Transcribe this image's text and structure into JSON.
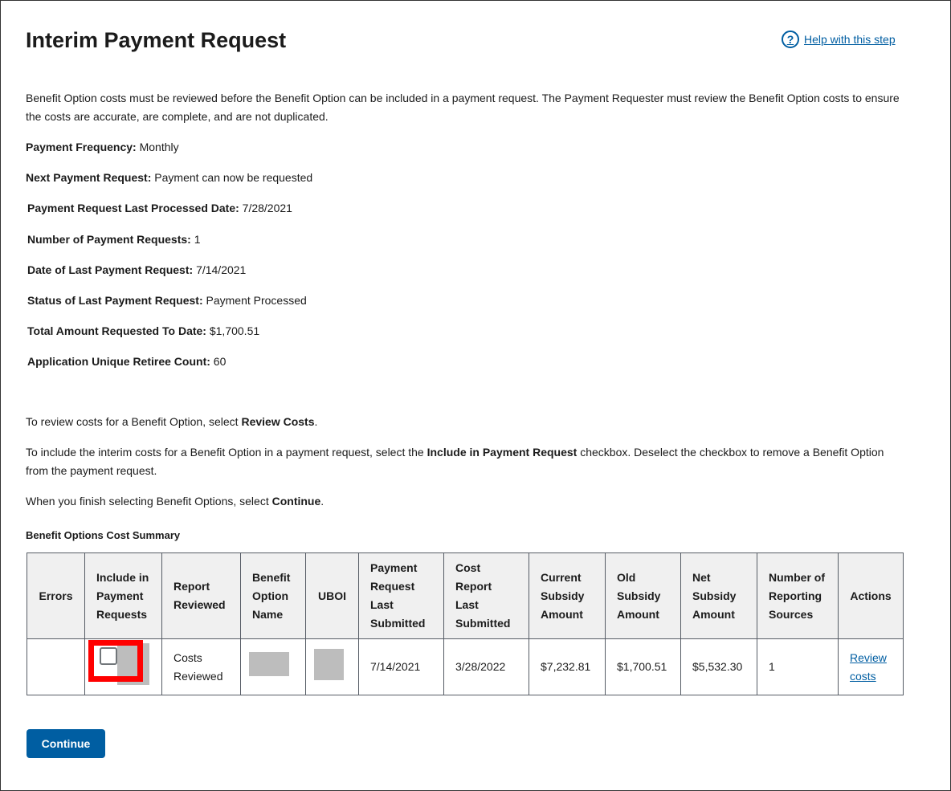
{
  "title": "Interim Payment Request",
  "help_link": "Help with this step",
  "intro": "Benefit Option costs must be reviewed before the Benefit Option can be included in a payment request. The Payment Requester must review the Benefit Option costs to ensure the costs are accurate, are complete, and are not duplicated.",
  "fields": [
    {
      "label": "Payment Frequency:",
      "value": "Monthly"
    },
    {
      "label": "Next Payment Request:",
      "value": "Payment can now be requested"
    },
    {
      "label": "Payment Request Last Processed Date:",
      "value": "7/28/2021"
    },
    {
      "label": "Number of Payment Requests:",
      "value": "1"
    },
    {
      "label": "Date of Last Payment Request:",
      "value": "7/14/2021"
    },
    {
      "label": "Status of Last Payment Request:",
      "value": "Payment Processed"
    },
    {
      "label": "Total Amount Requested To Date:",
      "value": "$1,700.51"
    },
    {
      "label": "Application Unique Retiree Count:",
      "value": "60"
    }
  ],
  "instr1": {
    "pre": "To review costs for a Benefit Option, select ",
    "bold": "Review Costs",
    "post": "."
  },
  "instr2": {
    "pre": "To include the interim costs for a Benefit Option in a payment request, select the ",
    "bold": "Include in Payment Request",
    "post": " checkbox. Deselect the checkbox to remove a Benefit Option from the payment request."
  },
  "instr3": {
    "pre": "When you finish selecting Benefit Options, select ",
    "bold": "Continue",
    "post": "."
  },
  "table_caption": "Benefit Options Cost Summary",
  "columns": [
    "Errors",
    "Include in Payment Requests",
    "Report Reviewed",
    "Benefit Option Name",
    "UBOI",
    "Payment Request Last Submitted",
    "Cost Report Last Submitted",
    "Current Subsidy Amount",
    "Old Subsidy Amount",
    "Net Subsidy Amount",
    "Number of Reporting Sources",
    "Actions"
  ],
  "row": {
    "errors": "",
    "included": false,
    "report_reviewed": "Costs Reviewed",
    "payment_request_last_submitted": "7/14/2021",
    "cost_report_last_submitted": "3/28/2022",
    "current_subsidy": "$7,232.81",
    "old_subsidy": "$1,700.51",
    "net_subsidy": "$5,532.30",
    "reporting_sources": "1",
    "action": "Review costs"
  },
  "continue_label": "Continue"
}
